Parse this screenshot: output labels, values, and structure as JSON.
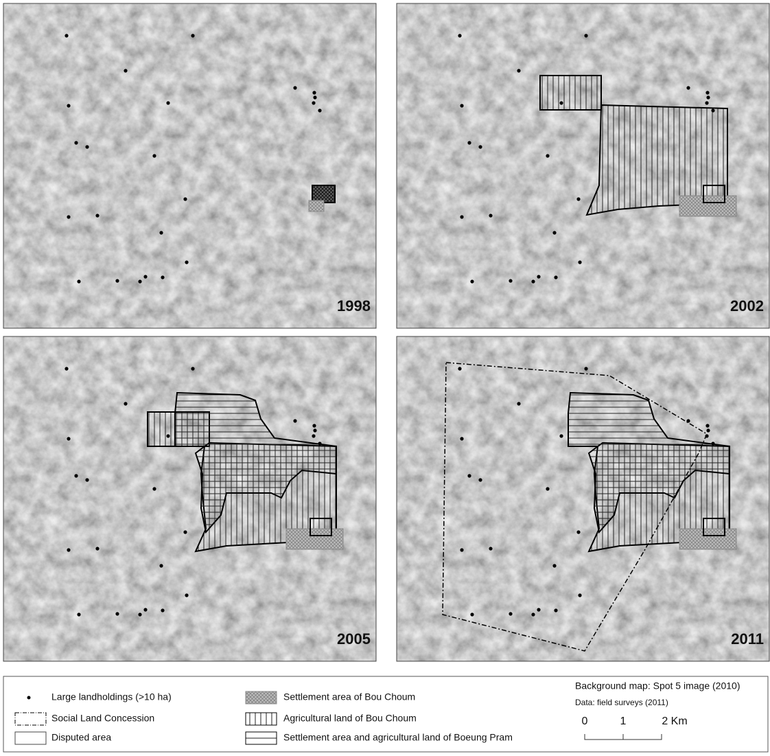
{
  "panels": [
    {
      "year": "1998"
    },
    {
      "year": "2002"
    },
    {
      "year": "2005"
    },
    {
      "year": "2011"
    }
  ],
  "legend": {
    "items": [
      "Large landholdings (>10 ha)",
      "Social Land Concession",
      "Disputed area",
      "Settlement area of Bou Choum",
      "Agricultural land of Bou Choum",
      "Settlement area and agricultural land of Boeung Pram"
    ]
  },
  "credits": {
    "background": "Background map: Spot 5 image (2010)",
    "data": "Data: field surveys (2011)"
  },
  "scale": {
    "labels": [
      "0",
      "1",
      "2 Km"
    ]
  }
}
